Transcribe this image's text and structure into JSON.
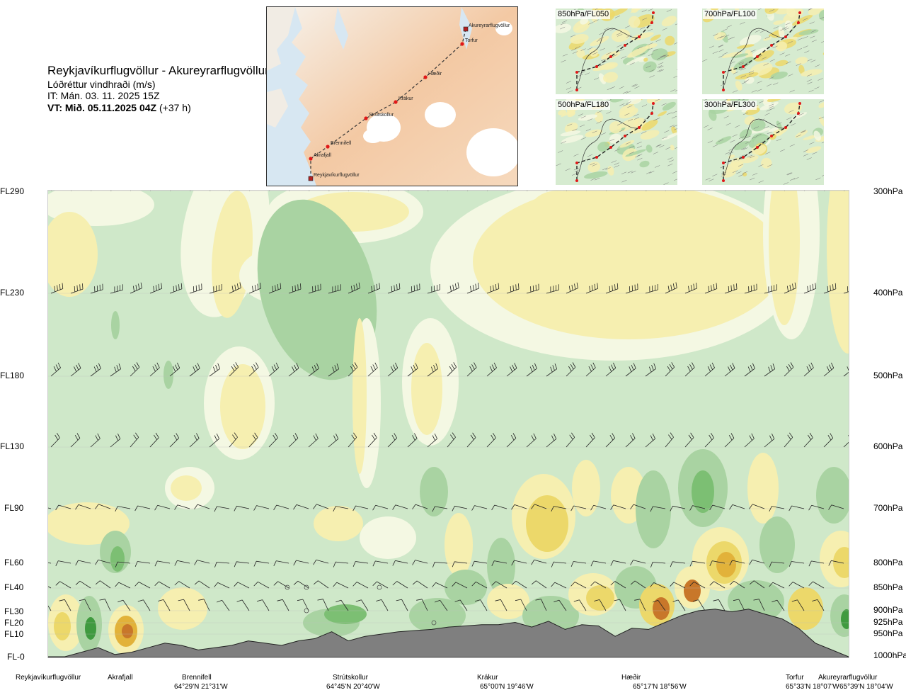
{
  "header": {
    "title": "Reykjavíkurflugvöllur - Akureyrarflugvöllur",
    "quantity": "Lóðréttur vindhraði (m/s)",
    "issue_time": "IT: Mán. 03. 11. 2025 15Z",
    "valid_time": "VT: Mið. 05.11.2025 04Z",
    "valid_offset": "(+37 h)"
  },
  "route_map": {
    "waypoints": [
      {
        "name": "Akureyrarflugvöllur",
        "marker": "square"
      },
      {
        "name": "Torfur",
        "marker": "circle"
      },
      {
        "name": "Hæðir",
        "marker": "circle"
      },
      {
        "name": "Krákur",
        "marker": "circle"
      },
      {
        "name": "Strútskollur",
        "marker": "circle"
      },
      {
        "name": "Brennifell",
        "marker": "circle"
      },
      {
        "name": "Akrafjall",
        "marker": "circle"
      },
      {
        "name": "Reykjavíkurflugvöllur",
        "marker": "square"
      }
    ]
  },
  "level_maps": [
    {
      "label": "850hPa/FL050"
    },
    {
      "label": "700hPa/FL100"
    },
    {
      "label": "500hPa/FL180"
    },
    {
      "label": "300hPa/FL300"
    }
  ],
  "colors": {
    "weak_down": "#cfe8c9",
    "moderate_down": "#a9d3a2",
    "strong_down": "#7cbf73",
    "very_strong_down": "#3f9a3f",
    "neutral": "#f4f8e3",
    "weak_up": "#f6efb0",
    "moderate_up": "#ecd86a",
    "strong_up": "#e2b23a",
    "very_strong_up": "#c8772a",
    "terrain": "#7f7f7f"
  },
  "chart_data": {
    "type": "heatmap",
    "title": "Lóðréttur vindhraði (m/s)",
    "x_axis": "route distance, Reykjavíkurflugvöllur → Akureyrarflugvöllur",
    "y_axis_left_ticks": [
      "FL290",
      "FL230",
      "FL180",
      "FL130",
      "FL90",
      "FL60",
      "FL40",
      "FL30",
      "FL20",
      "FL10",
      "FL-0"
    ],
    "y_axis_right_ticks": [
      "300hPa",
      "400hPa",
      "500hPa",
      "600hPa",
      "700hPa",
      "800hPa",
      "850hPa",
      "900hPa",
      "925hPa",
      "950hPa",
      "1000hPa"
    ],
    "pressure_levels_hpa": [
      300,
      400,
      500,
      600,
      700,
      800,
      850,
      900,
      925,
      950,
      1000
    ],
    "locations": [
      {
        "name": "Reykjavíkurflugvöllur",
        "coord": ""
      },
      {
        "name": "Akrafjall",
        "coord": ""
      },
      {
        "name": "Brennifell",
        "coord": "64°29'N 21°31'W"
      },
      {
        "name": "Strútskollur",
        "coord": "64°45'N 20°40'W"
      },
      {
        "name": "Krákur",
        "coord": "65°00'N 19°46'W"
      },
      {
        "name": "Hæðir",
        "coord": "65°17'N 18°56'W"
      },
      {
        "name": "Torfur",
        "coord": "65°33'N 18°07'W"
      },
      {
        "name": "Akureyrarflugvöllur",
        "coord": "65°39'N 18°04'W"
      }
    ],
    "background": "weak descent (light green) throughout most of the section; ascent bands (yellow) in upper troposphere and strong alternating up/down cells over terrain below 800 hPa",
    "terrain_fl_profile": [
      0,
      0,
      2,
      4,
      1,
      2,
      4,
      6,
      5,
      3,
      4,
      5,
      7,
      6,
      5,
      7,
      8,
      12,
      7,
      9,
      10,
      12,
      13,
      14,
      16,
      17,
      18,
      18,
      20,
      16,
      21,
      14,
      18,
      17,
      9,
      15,
      14,
      20,
      26,
      30,
      31,
      29,
      31,
      27,
      23,
      15,
      6,
      3,
      0
    ]
  }
}
